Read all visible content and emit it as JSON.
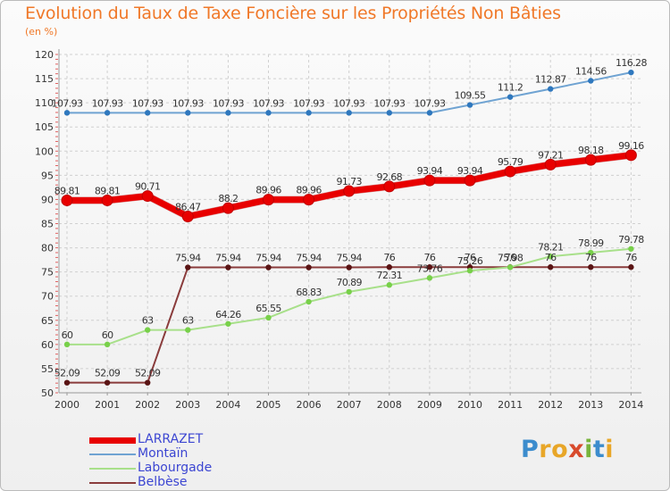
{
  "title": "Evolution du Taux de Taxe Foncière sur les Propriétés Non Bâties",
  "subtitle": "(en %)",
  "logo_text": "Proxiti",
  "chart_data": {
    "type": "line",
    "title": "Evolution du Taux de Taxe Foncière sur les Propriétés Non Bâties",
    "ylabel": "(en %)",
    "xlabel": "",
    "ylim": [
      50,
      120
    ],
    "y_ticks": [
      50,
      55,
      60,
      65,
      70,
      75,
      80,
      85,
      90,
      95,
      100,
      105,
      110,
      115,
      120
    ],
    "categories": [
      "2000",
      "2001",
      "2002",
      "2003",
      "2004",
      "2005",
      "2006",
      "2007",
      "2008",
      "2009",
      "2010",
      "2011",
      "2012",
      "2013",
      "2014"
    ],
    "grid": true,
    "legend_position": "bottom-left",
    "series": [
      {
        "name": "LARRAZET",
        "color": "#e80000",
        "point_color": "#e80000",
        "line_width": 7,
        "values": [
          89.81,
          89.81,
          90.71,
          86.47,
          88.2,
          89.96,
          89.96,
          91.73,
          92.68,
          93.94,
          93.94,
          95.79,
          97.21,
          98.18,
          99.16
        ],
        "labels": [
          "89.81",
          "89.81",
          "90.71",
          "86.47",
          "88.2",
          "89.96",
          "89.96",
          "91.73",
          "92.68",
          "93.94",
          "93.94",
          "95.79",
          "97.21",
          "98.18",
          "99.16"
        ]
      },
      {
        "name": "Montaïn",
        "color": "#6fa3d2",
        "point_color": "#2f78be",
        "line_width": 2,
        "values": [
          107.93,
          107.93,
          107.93,
          107.93,
          107.93,
          107.93,
          107.93,
          107.93,
          107.93,
          107.93,
          109.55,
          111.2,
          112.87,
          114.56,
          116.28
        ],
        "labels": [
          "107.93",
          "107.93",
          "107.93",
          "107.93",
          "107.93",
          "107.93",
          "107.93",
          "107.93",
          "107.93",
          "107.93",
          "109.55",
          "111.2",
          "112.87",
          "114.56",
          "116.28"
        ]
      },
      {
        "name": "Labourgade",
        "color": "#a8e08a",
        "point_color": "#78d04a",
        "line_width": 2,
        "values": [
          60,
          60,
          63,
          63,
          64.26,
          65.55,
          68.83,
          70.89,
          72.31,
          73.76,
          75.26,
          75.98,
          78.21,
          78.99,
          79.78
        ],
        "labels": [
          "60",
          "60",
          "63",
          "63",
          "64.26",
          "65.55",
          "68.83",
          "70.89",
          "72.31",
          "73.76",
          "75.26",
          "75.98",
          "78.21",
          "78.99",
          "79.78"
        ]
      },
      {
        "name": "Belbèse",
        "color": "#8a3c3c",
        "point_color": "#5a1414",
        "line_width": 2,
        "values": [
          52.09,
          52.09,
          52.09,
          75.94,
          75.94,
          75.94,
          75.94,
          75.94,
          76,
          76,
          76,
          76,
          76,
          76,
          76
        ],
        "labels": [
          "52.09",
          "52.09",
          "52.09",
          "75.94",
          "75.94",
          "75.94",
          "75.94",
          "75.94",
          "76",
          "76",
          "76",
          "76",
          "76",
          "76",
          "76"
        ]
      }
    ]
  }
}
